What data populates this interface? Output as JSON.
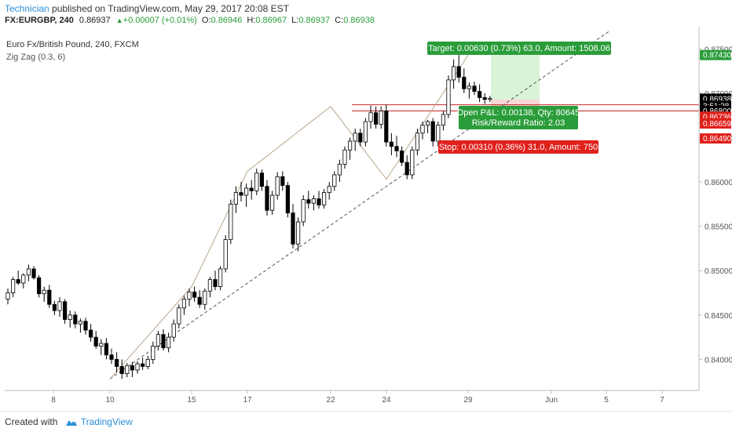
{
  "header": {
    "author": "Technician",
    "published_text": " published on TradingView.com, May 29, 2017 20:08 EST",
    "symbol": "FX:EURGBP, 240",
    "last": "0.86937",
    "change_arrow": "▲",
    "change": "+0.00007 (+0.01%)",
    "o_label": "O:",
    "o_value": "0.86946",
    "h_label": "H:",
    "h_value": "0.86967",
    "l_label": "L:",
    "l_value": "0.86937",
    "c_label": "C:",
    "c_value": "0.86938"
  },
  "legend": {
    "title": "Euro Fx/British Pound, 240, FXCM",
    "indicator": "Zig Zag (0.3, 6)"
  },
  "position_tool": {
    "target_label": "Target: 0.00630 (0.73%) 63.0, Amount: 1508.06",
    "pnl_label": "Open P&L: 0.00138, Qty: 80645",
    "rr_label": "Risk/Reward Ratio: 2.03",
    "stop_label": "Stop: 0.00310 (0.36%) 31.0, Amount: 750"
  },
  "price_tags": [
    {
      "text": "0.87430",
      "value": 0.8743,
      "bg": "#2a9d3a"
    },
    {
      "text": "0.86938",
      "value": 0.86938,
      "bg": "#000000"
    },
    {
      "text": "3:51:28",
      "value": 0.86858,
      "bg": "#000000"
    },
    {
      "text": "0.86800",
      "value": 0.868,
      "bg": "#000000"
    },
    {
      "text": "0.86736",
      "value": 0.86736,
      "bg": "#e0201b"
    },
    {
      "text": "0.86659",
      "value": 0.86659,
      "bg": "#e0201b"
    },
    {
      "text": "0.86490",
      "value": 0.8649,
      "bg": "#e0201b"
    }
  ],
  "footer": {
    "created_with": "Created with",
    "brand": "TradingView"
  },
  "colors": {
    "up_candle": "#ffffff",
    "down_candle": "#000000",
    "target_zone": "#d9f3d9",
    "stop_zone": "#f9d6d6",
    "green_label": "#2a9d3a",
    "red_label": "#e0201b",
    "zigzag": "#b9a58a",
    "brand": "#2a8fd6"
  },
  "chart_data": {
    "type": "candlestick",
    "ylim": [
      0.8365,
      0.8775
    ],
    "y_ticks": [
      "0.84000",
      "0.84500",
      "0.85000",
      "0.85500",
      "0.86000",
      "0.86500",
      "0.87000",
      "0.87500"
    ],
    "x_ticks": [
      "8",
      "10",
      "15",
      "17",
      "22",
      "24",
      "29",
      "Jun",
      "5",
      "7"
    ],
    "annotations": {
      "horizontal_lines": [
        0.868,
        0.8687
      ],
      "trendline_from": [
        "10",
        0.8378
      ],
      "target_zone": [
        0.8693,
        0.8756
      ],
      "stop_zone": [
        0.8662,
        0.8693
      ],
      "zigzag_pivots": [
        {
          "x": "10",
          "y": 0.8378
        },
        {
          "x": "15",
          "y": 0.8482
        },
        {
          "x": "17",
          "y": 0.8612
        },
        {
          "x": "22",
          "y": 0.8685
        },
        {
          "x": "24",
          "y": 0.8603
        },
        {
          "x": "29",
          "y": 0.8743
        }
      ]
    },
    "candles": [
      [
        0.8468,
        0.848,
        0.8462,
        0.8475
      ],
      [
        0.8475,
        0.8493,
        0.847,
        0.849
      ],
      [
        0.849,
        0.85,
        0.8484,
        0.8486
      ],
      [
        0.8486,
        0.8497,
        0.848,
        0.8495
      ],
      [
        0.8495,
        0.8507,
        0.8488,
        0.8502
      ],
      [
        0.8502,
        0.8505,
        0.849,
        0.8492
      ],
      [
        0.8492,
        0.8495,
        0.847,
        0.8474
      ],
      [
        0.8474,
        0.8482,
        0.8465,
        0.8478
      ],
      [
        0.8478,
        0.8484,
        0.8458,
        0.8462
      ],
      [
        0.8462,
        0.8466,
        0.845,
        0.8455
      ],
      [
        0.8455,
        0.847,
        0.8448,
        0.8465
      ],
      [
        0.8465,
        0.8468,
        0.844,
        0.8445
      ],
      [
        0.8445,
        0.8455,
        0.8436,
        0.845
      ],
      [
        0.845,
        0.8454,
        0.8435,
        0.844
      ],
      [
        0.844,
        0.8446,
        0.843,
        0.8443
      ],
      [
        0.8443,
        0.8447,
        0.8428,
        0.8433
      ],
      [
        0.8433,
        0.844,
        0.842,
        0.8425
      ],
      [
        0.8425,
        0.8432,
        0.8412,
        0.8415
      ],
      [
        0.8415,
        0.8423,
        0.8405,
        0.8418
      ],
      [
        0.8418,
        0.8424,
        0.84,
        0.8405
      ],
      [
        0.8405,
        0.8412,
        0.8395,
        0.84
      ],
      [
        0.84,
        0.8408,
        0.8385,
        0.8392
      ],
      [
        0.8392,
        0.84,
        0.8378,
        0.8384
      ],
      [
        0.8384,
        0.8396,
        0.838,
        0.8393
      ],
      [
        0.8393,
        0.8397,
        0.838,
        0.8388
      ],
      [
        0.8388,
        0.8398,
        0.8384,
        0.8395
      ],
      [
        0.8395,
        0.8402,
        0.8388,
        0.8392
      ],
      [
        0.8392,
        0.8404,
        0.8389,
        0.84
      ],
      [
        0.84,
        0.842,
        0.8395,
        0.8415
      ],
      [
        0.8415,
        0.8432,
        0.841,
        0.8428
      ],
      [
        0.8428,
        0.8434,
        0.841,
        0.8413
      ],
      [
        0.8413,
        0.843,
        0.8408,
        0.8425
      ],
      [
        0.8425,
        0.8445,
        0.842,
        0.844
      ],
      [
        0.844,
        0.8462,
        0.8435,
        0.8458
      ],
      [
        0.8458,
        0.8472,
        0.845,
        0.8468
      ],
      [
        0.8468,
        0.848,
        0.846,
        0.8476
      ],
      [
        0.8476,
        0.8482,
        0.8465,
        0.847
      ],
      [
        0.847,
        0.8478,
        0.8458,
        0.8462
      ],
      [
        0.8462,
        0.848,
        0.8456,
        0.8477
      ],
      [
        0.8477,
        0.8493,
        0.847,
        0.849
      ],
      [
        0.849,
        0.85,
        0.8478,
        0.8482
      ],
      [
        0.8482,
        0.8505,
        0.8478,
        0.8502
      ],
      [
        0.8502,
        0.854,
        0.8498,
        0.8535
      ],
      [
        0.8535,
        0.858,
        0.853,
        0.8575
      ],
      [
        0.8575,
        0.8595,
        0.8565,
        0.8588
      ],
      [
        0.8588,
        0.86,
        0.8578,
        0.8585
      ],
      [
        0.8585,
        0.8598,
        0.8572,
        0.8593
      ],
      [
        0.8593,
        0.8602,
        0.858,
        0.859
      ],
      [
        0.859,
        0.8615,
        0.8585,
        0.861
      ],
      [
        0.861,
        0.8614,
        0.859,
        0.8595
      ],
      [
        0.8595,
        0.8602,
        0.8562,
        0.8568
      ],
      [
        0.8568,
        0.859,
        0.8563,
        0.8585
      ],
      [
        0.8585,
        0.8611,
        0.858,
        0.8606
      ],
      [
        0.8606,
        0.8612,
        0.859,
        0.8596
      ],
      [
        0.8596,
        0.86,
        0.856,
        0.8565
      ],
      [
        0.8565,
        0.8575,
        0.8525,
        0.853
      ],
      [
        0.853,
        0.856,
        0.8522,
        0.8555
      ],
      [
        0.8555,
        0.8585,
        0.855,
        0.858
      ],
      [
        0.858,
        0.859,
        0.857,
        0.8576
      ],
      [
        0.8576,
        0.8585,
        0.8568,
        0.8581
      ],
      [
        0.8581,
        0.859,
        0.857,
        0.8574
      ],
      [
        0.8574,
        0.8592,
        0.857,
        0.8588
      ],
      [
        0.8588,
        0.86,
        0.858,
        0.8595
      ],
      [
        0.8595,
        0.8612,
        0.859,
        0.8608
      ],
      [
        0.8608,
        0.8625,
        0.86,
        0.862
      ],
      [
        0.862,
        0.864,
        0.8615,
        0.8636
      ],
      [
        0.8636,
        0.865,
        0.8625,
        0.8646
      ],
      [
        0.8646,
        0.866,
        0.8635,
        0.8655
      ],
      [
        0.8655,
        0.866,
        0.864,
        0.8645
      ],
      [
        0.8645,
        0.8672,
        0.864,
        0.8668
      ],
      [
        0.8668,
        0.8686,
        0.866,
        0.8678
      ],
      [
        0.8678,
        0.8685,
        0.866,
        0.8665
      ],
      [
        0.8665,
        0.8685,
        0.866,
        0.868
      ],
      [
        0.868,
        0.8687,
        0.864,
        0.8645
      ],
      [
        0.8645,
        0.8655,
        0.863,
        0.864
      ],
      [
        0.864,
        0.8652,
        0.8628,
        0.8635
      ],
      [
        0.8635,
        0.864,
        0.8618,
        0.8622
      ],
      [
        0.8622,
        0.863,
        0.8603,
        0.8608
      ],
      [
        0.8608,
        0.864,
        0.8603,
        0.8636
      ],
      [
        0.8636,
        0.866,
        0.863,
        0.8655
      ],
      [
        0.8655,
        0.8668,
        0.8648,
        0.8664
      ],
      [
        0.8664,
        0.867,
        0.8655,
        0.8668
      ],
      [
        0.8668,
        0.8672,
        0.864,
        0.8646
      ],
      [
        0.8646,
        0.8668,
        0.864,
        0.8664
      ],
      [
        0.8664,
        0.868,
        0.8658,
        0.8676
      ],
      [
        0.8676,
        0.872,
        0.8672,
        0.8715
      ],
      [
        0.8715,
        0.8738,
        0.8705,
        0.873
      ],
      [
        0.873,
        0.8743,
        0.8712,
        0.8718
      ],
      [
        0.8718,
        0.8728,
        0.87,
        0.8705
      ],
      [
        0.8705,
        0.8712,
        0.8694,
        0.8708
      ],
      [
        0.8708,
        0.8713,
        0.8698,
        0.8702
      ],
      [
        0.8702,
        0.871,
        0.869,
        0.8695
      ],
      [
        0.8695,
        0.87,
        0.8688,
        0.8693
      ],
      [
        0.8693,
        0.8697,
        0.869,
        0.8694
      ]
    ]
  }
}
